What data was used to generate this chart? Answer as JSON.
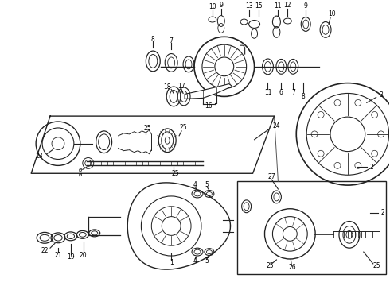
{
  "bg_color": "#ffffff",
  "line_color": "#222222",
  "text_color": "#000000",
  "fig_width": 4.9,
  "fig_height": 3.6,
  "dpi": 100
}
